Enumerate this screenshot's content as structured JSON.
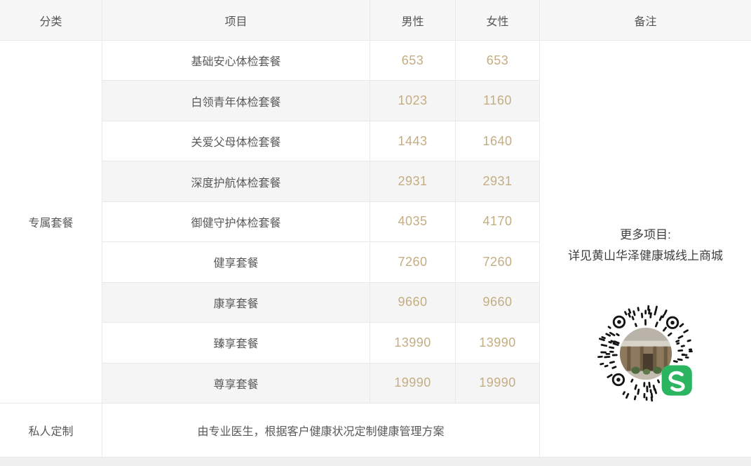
{
  "table": {
    "headers": {
      "category": "分类",
      "item": "项目",
      "male": "男性",
      "female": "女性",
      "remark": "备注"
    },
    "category_group_label": "专属套餐",
    "rows": [
      {
        "item": "基础安心体检套餐",
        "male": "653",
        "female": "653"
      },
      {
        "item": "白领青年体检套餐",
        "male": "1023",
        "female": "1160"
      },
      {
        "item": "关爱父母体检套餐",
        "male": "1443",
        "female": "1640"
      },
      {
        "item": "深度护航体检套餐",
        "male": "2931",
        "female": "2931"
      },
      {
        "item": "御健守护体检套餐",
        "male": "4035",
        "female": "4170"
      },
      {
        "item": "健享套餐",
        "male": "7260",
        "female": "7260"
      },
      {
        "item": "康享套餐",
        "male": "9660",
        "female": "9660"
      },
      {
        "item": "臻享套餐",
        "male": "13990",
        "female": "13990"
      },
      {
        "item": "尊享套餐",
        "male": "19990",
        "female": "19990"
      }
    ],
    "custom_row": {
      "category": "私人定制",
      "description": "由专业医生，根据客户健康状况定制健康管理方案"
    }
  },
  "remark": {
    "line1": "更多项目:",
    "line2": "详见黄山华泽健康城线上商城",
    "qr_icon": "wechat-miniprogram-qr-icon"
  },
  "colors": {
    "price_text": "#c4ad82",
    "body_text": "#595959",
    "header_bg": "#f7f7f7",
    "row_alt_bg": "#f5f5f5",
    "border": "#e9e9e9",
    "wechat_green": "#2bb561"
  }
}
